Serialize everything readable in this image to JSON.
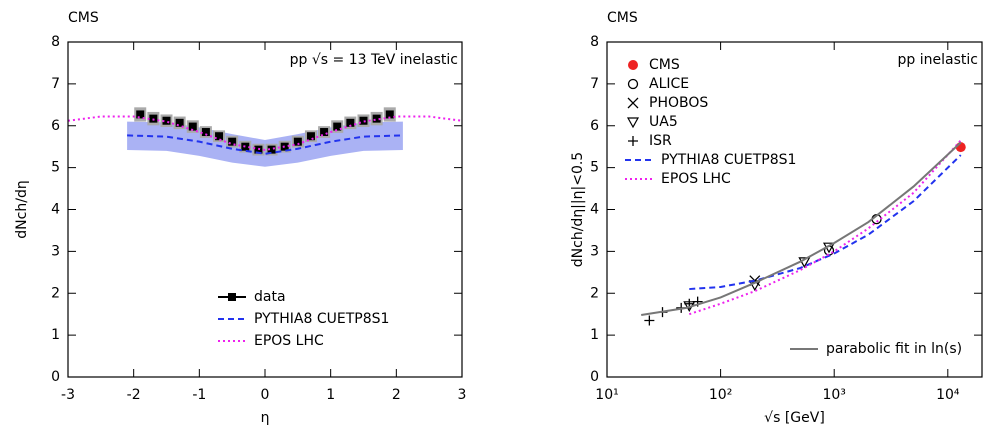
{
  "chart_data": [
    {
      "type": "line",
      "title": "CMS",
      "annotation": "pp √s = 13 TeV inelastic",
      "xlabel": "η",
      "ylabel": "dNch/dη",
      "xlim": [
        -3,
        3
      ],
      "xticks": [
        -3,
        -2,
        -1,
        0,
        1,
        2,
        3
      ],
      "ylim": [
        0,
        8
      ],
      "yticks": [
        0,
        1,
        2,
        3,
        4,
        5,
        6,
        7,
        8
      ],
      "legend": "lower center",
      "series": [
        {
          "name": "data",
          "color": "#000000",
          "marker": "square",
          "error_color": "#aaaaaa",
          "x": [
            -1.9,
            -1.7,
            -1.5,
            -1.3,
            -1.1,
            -0.9,
            -0.7,
            -0.5,
            -0.3,
            -0.1,
            0.1,
            0.3,
            0.5,
            0.7,
            0.9,
            1.1,
            1.3,
            1.5,
            1.7,
            1.9
          ],
          "values": [
            6.27,
            6.17,
            6.12,
            6.07,
            5.98,
            5.85,
            5.75,
            5.62,
            5.5,
            5.43,
            5.43,
            5.5,
            5.62,
            5.75,
            5.85,
            5.98,
            6.07,
            6.12,
            6.17,
            6.27
          ],
          "errors": [
            0.17,
            0.16,
            0.15,
            0.15,
            0.15,
            0.14,
            0.14,
            0.14,
            0.14,
            0.14,
            0.14,
            0.14,
            0.14,
            0.14,
            0.14,
            0.15,
            0.15,
            0.15,
            0.16,
            0.17
          ]
        },
        {
          "name": "PYTHIA8 CUETP8S1",
          "color": "#2233ee",
          "dash": "dashed",
          "band_color": "#aab2f4",
          "x": [
            -2.1,
            -1.5,
            -1,
            -0.5,
            0,
            0.5,
            1,
            1.5,
            2.1
          ],
          "values": [
            5.77,
            5.74,
            5.62,
            5.45,
            5.33,
            5.45,
            5.62,
            5.74,
            5.77
          ],
          "lower": [
            5.42,
            5.4,
            5.28,
            5.12,
            5.02,
            5.12,
            5.28,
            5.4,
            5.42
          ],
          "upper": [
            6.1,
            6.08,
            5.96,
            5.8,
            5.66,
            5.8,
            5.96,
            6.08,
            6.1
          ]
        },
        {
          "name": "EPOS LHC",
          "color": "#ee22ee",
          "dash": "dotted",
          "x": [
            -3,
            -2.5,
            -2,
            -1.5,
            -1,
            -0.5,
            0,
            0.5,
            1,
            1.5,
            2,
            2.5,
            3
          ],
          "values": [
            6.12,
            6.22,
            6.22,
            6.1,
            5.85,
            5.56,
            5.42,
            5.56,
            5.85,
            6.1,
            6.22,
            6.22,
            6.12
          ]
        }
      ]
    },
    {
      "type": "line",
      "title": "CMS",
      "annotation": "pp inelastic",
      "xlabel": "√s [GeV]",
      "ylabel": "dNch/dη||η|<0.5",
      "xscale": "log",
      "xlim": [
        10,
        20000
      ],
      "xticks": [
        {
          "value": 10,
          "label": "10¹"
        },
        {
          "value": 100,
          "label": "10²"
        },
        {
          "value": 1000,
          "label": "10³"
        },
        {
          "value": 10000,
          "label": "10⁴"
        }
      ],
      "ylim": [
        0,
        8
      ],
      "yticks": [
        0,
        1,
        2,
        3,
        4,
        5,
        6,
        7,
        8
      ],
      "legend": "upper left",
      "series": [
        {
          "name": "CMS",
          "color": "#ee2222",
          "marker": "circle-filled",
          "x": [
            13000
          ],
          "values": [
            5.49
          ]
        },
        {
          "name": "ALICE",
          "color": "#000000",
          "marker": "circle-open",
          "x": [
            900,
            2360
          ],
          "values": [
            3.02,
            3.77
          ]
        },
        {
          "name": "PHOBOS",
          "color": "#000000",
          "marker": "x",
          "x": [
            200
          ],
          "values": [
            2.3
          ]
        },
        {
          "name": "UA5",
          "color": "#000000",
          "marker": "triangle",
          "x": [
            53,
            200,
            546,
            900
          ],
          "values": [
            1.7,
            2.2,
            2.75,
            3.1
          ]
        },
        {
          "name": "ISR",
          "color": "#000000",
          "marker": "plus",
          "x": [
            23.6,
            30.8,
            45,
            53,
            62.8
          ],
          "values": [
            1.35,
            1.55,
            1.65,
            1.75,
            1.8
          ]
        },
        {
          "name": "PYTHIA8 CUETP8S1",
          "color": "#2233ee",
          "dash": "dashed",
          "x": [
            53,
            100,
            200,
            500,
            1000,
            2000,
            5000,
            13000
          ],
          "values": [
            2.1,
            2.15,
            2.3,
            2.6,
            2.95,
            3.4,
            4.2,
            5.3
          ]
        },
        {
          "name": "EPOS LHC",
          "color": "#ee22ee",
          "dash": "dotted",
          "x": [
            53,
            100,
            200,
            500,
            1000,
            2000,
            5000,
            13000
          ],
          "values": [
            1.5,
            1.75,
            2.05,
            2.55,
            3.0,
            3.55,
            4.4,
            5.65
          ]
        },
        {
          "name": "parabolic fit in ln(s)",
          "color": "#777777",
          "dash": "solid",
          "legend_loc": "lower right",
          "x": [
            20,
            50,
            100,
            200,
            500,
            1000,
            2000,
            5000,
            13000
          ],
          "values": [
            1.48,
            1.65,
            1.9,
            2.25,
            2.75,
            3.2,
            3.7,
            4.55,
            5.6
          ]
        }
      ]
    }
  ]
}
